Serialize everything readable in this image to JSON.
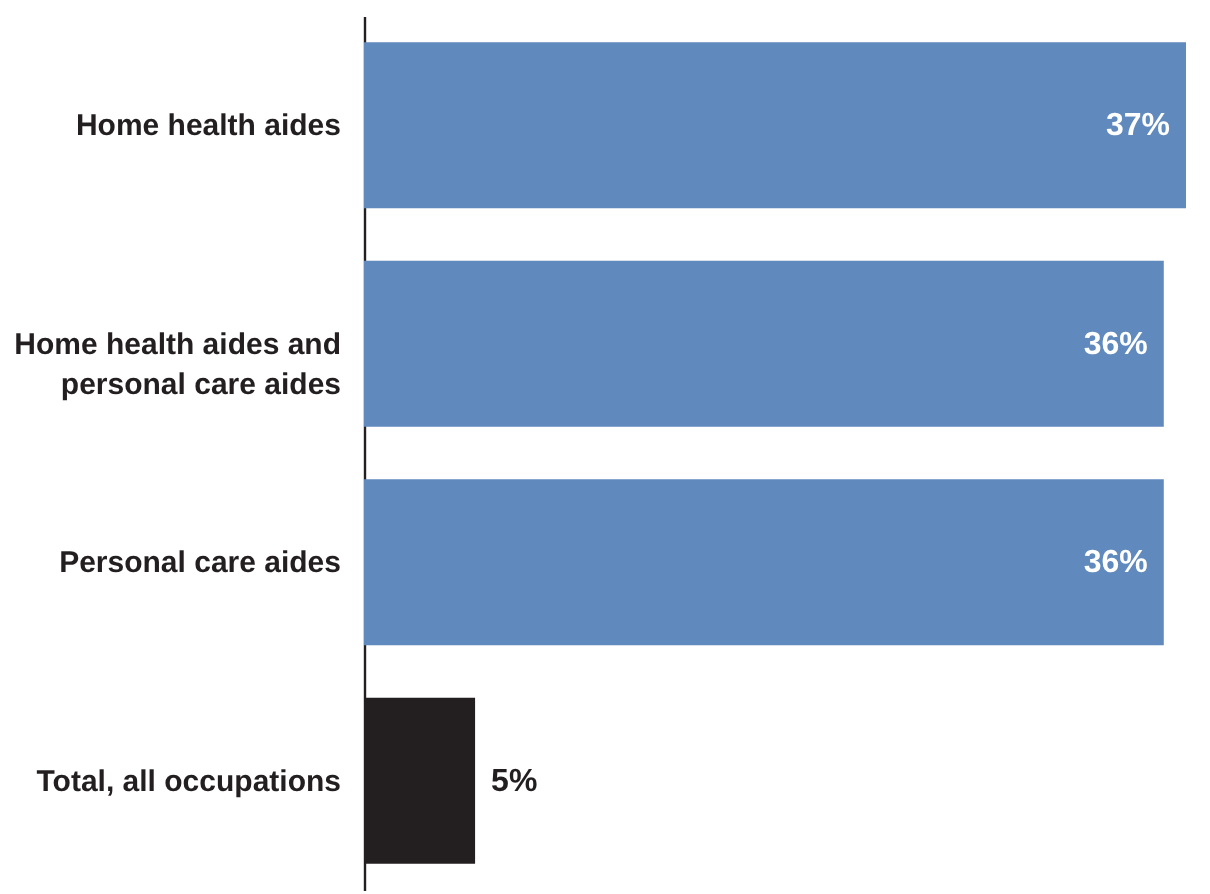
{
  "chart_data": {
    "type": "bar",
    "orientation": "horizontal",
    "categories": [
      "Home health aides",
      "Home health aides and personal care aides",
      "Personal care aides",
      "Total, all occupations"
    ],
    "values": [
      37,
      36,
      36,
      5
    ],
    "colors": [
      "#6089bd",
      "#6089bd",
      "#6089bd",
      "#231f20"
    ],
    "value_labels": [
      "37%",
      "36%",
      "36%",
      "5%"
    ],
    "grid": false
  }
}
